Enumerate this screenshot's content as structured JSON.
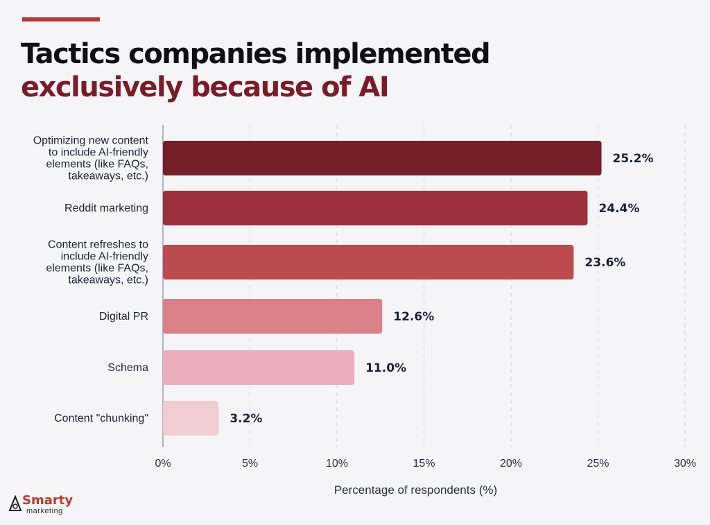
{
  "title": {
    "line1": "Tactics companies implemented",
    "line2": "exclusively because of AI"
  },
  "colors": {
    "accent": "#b5383d",
    "title_dark": "#0f0f14",
    "title_accent": "#7a1c28",
    "bars": [
      "#751e2a",
      "#9c303c",
      "#bb4b4f",
      "#d98088",
      "#ebadba",
      "#f2ccd3"
    ]
  },
  "chart_data": {
    "type": "bar",
    "orientation": "horizontal",
    "categories": [
      [
        "Optimizing new content",
        "to include AI-friendly",
        "elements (like FAQs,",
        "takeaways, etc.)"
      ],
      [
        "Reddit marketing"
      ],
      [
        "Content refreshes to",
        "include AI-friendly",
        "elements (like FAQs,",
        "takeaways, etc.)"
      ],
      [
        "Digital PR"
      ],
      [
        "Schema"
      ],
      [
        "Content \"chunking\""
      ]
    ],
    "values": [
      25.2,
      24.4,
      23.6,
      12.6,
      11.0,
      3.2
    ],
    "value_labels": [
      "25.2%",
      "24.4%",
      "23.6%",
      "12.6%",
      "11.0%",
      "3.2%"
    ],
    "xlim": [
      0,
      30
    ],
    "xticks": [
      0,
      5,
      10,
      15,
      20,
      25,
      30
    ],
    "xtick_labels": [
      "0%",
      "5%",
      "10%",
      "15%",
      "20%",
      "25%",
      "30%"
    ],
    "xlabel": "Percentage of respondents (%)",
    "ylabel": "",
    "grid": "vertical dashed"
  },
  "logo": {
    "name": "Smarty",
    "sub": "marketing"
  }
}
